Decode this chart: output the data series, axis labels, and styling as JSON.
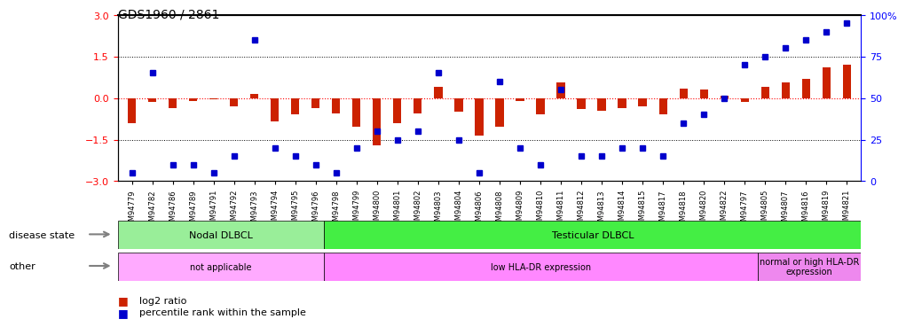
{
  "title": "GDS1960 / 2861",
  "samples": [
    "GSM94779",
    "GSM94782",
    "GSM94786",
    "GSM94789",
    "GSM94791",
    "GSM94792",
    "GSM94793",
    "GSM94794",
    "GSM94795",
    "GSM94796",
    "GSM94798",
    "GSM94799",
    "GSM94800",
    "GSM94801",
    "GSM94802",
    "GSM94803",
    "GSM94804",
    "GSM94806",
    "GSM94808",
    "GSM94809",
    "GSM94810",
    "GSM94811",
    "GSM94812",
    "GSM94813",
    "GSM94814",
    "GSM94815",
    "GSM94817",
    "GSM94818",
    "GSM94820",
    "GSM94822",
    "GSM94797",
    "GSM94805",
    "GSM94807",
    "GSM94816",
    "GSM94819",
    "GSM94821"
  ],
  "log2_ratio": [
    -0.9,
    -0.15,
    -0.35,
    -0.1,
    -0.05,
    -0.3,
    0.15,
    -0.85,
    -0.6,
    -0.35,
    -0.55,
    -1.05,
    -1.7,
    -0.9,
    -0.55,
    0.4,
    -0.5,
    -1.35,
    -1.05,
    -0.1,
    -0.6,
    0.55,
    -0.4,
    -0.45,
    -0.35,
    -0.3,
    -0.6,
    0.35,
    0.3,
    0.1,
    -0.15,
    0.4,
    0.55,
    0.7,
    1.1,
    1.2
  ],
  "percentile": [
    5,
    65,
    10,
    10,
    5,
    15,
    85,
    20,
    15,
    10,
    5,
    20,
    30,
    25,
    30,
    65,
    25,
    5,
    60,
    20,
    10,
    55,
    15,
    15,
    20,
    20,
    15,
    35,
    40,
    50,
    70,
    75,
    80,
    85,
    90,
    95
  ],
  "ylim": [
    -3,
    3
  ],
  "yticks_left": [
    -3,
    -1.5,
    0,
    1.5,
    3
  ],
  "yticks_right": [
    0,
    25,
    50,
    75,
    100
  ],
  "hline_y": 0,
  "dotted_lines": [
    -1.5,
    1.5
  ],
  "bar_color": "#cc2200",
  "dot_color": "#0000cc",
  "disease_state_groups": [
    {
      "label": "Nodal DLBCL",
      "start": 0,
      "end": 10,
      "color": "#99ee99"
    },
    {
      "label": "Testicular DLBCL",
      "start": 10,
      "end": 36,
      "color": "#44ee44"
    }
  ],
  "other_groups": [
    {
      "label": "not applicable",
      "start": 0,
      "end": 10,
      "color": "#ffaaff"
    },
    {
      "label": "low HLA-DR expression",
      "start": 10,
      "end": 31,
      "color": "#ff88ff"
    },
    {
      "label": "normal or high HLA-DR\nexpression",
      "start": 31,
      "end": 36,
      "color": "#ee88ee"
    }
  ],
  "row_labels": [
    "disease state",
    "other"
  ],
  "legend_items": [
    {
      "label": "log2 ratio",
      "color": "#cc2200"
    },
    {
      "label": "percentile rank within the sample",
      "color": "#0000cc"
    }
  ],
  "background_color": "#ffffff"
}
